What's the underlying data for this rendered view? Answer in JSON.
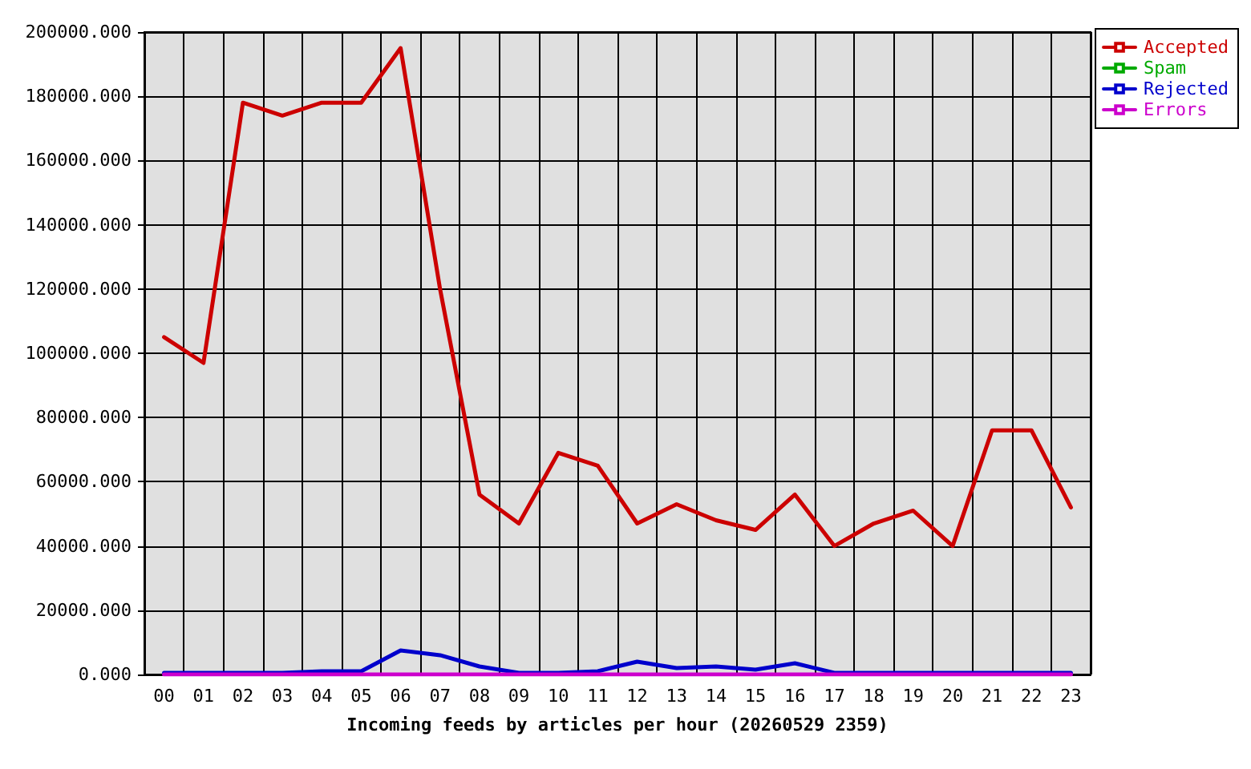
{
  "chart_data": {
    "type": "line",
    "xlabel": "Incoming feeds by articles per hour (20260529 2359)",
    "categories": [
      "00",
      "01",
      "02",
      "03",
      "04",
      "05",
      "06",
      "07",
      "08",
      "09",
      "10",
      "11",
      "12",
      "13",
      "14",
      "15",
      "16",
      "17",
      "18",
      "19",
      "20",
      "21",
      "22",
      "23"
    ],
    "series": [
      {
        "name": "Accepted",
        "color": "#cc0000",
        "values": [
          105000,
          97000,
          178000,
          174000,
          178000,
          178000,
          195000,
          120000,
          56000,
          47000,
          69000,
          65000,
          47000,
          53000,
          48000,
          45000,
          56000,
          40000,
          47000,
          51000,
          40000,
          76000,
          76000,
          52000
        ]
      },
      {
        "name": "Spam",
        "color": "#00aa00",
        "values": [
          null,
          null,
          null,
          null,
          null,
          null,
          null,
          null,
          null,
          null,
          null,
          null,
          null,
          null,
          null,
          null,
          null,
          null,
          null,
          null,
          null,
          null,
          null,
          null
        ]
      },
      {
        "name": "Rejected",
        "color": "#0000cc",
        "values": [
          500,
          500,
          500,
          500,
          1000,
          1000,
          7500,
          6000,
          2500,
          500,
          500,
          1000,
          4000,
          2000,
          2500,
          1500,
          3500,
          500,
          500,
          500,
          500,
          500,
          500,
          500
        ]
      },
      {
        "name": "Errors",
        "color": "#cc00cc",
        "values": [
          0,
          0,
          0,
          0,
          0,
          0,
          0,
          0,
          0,
          0,
          0,
          0,
          0,
          0,
          0,
          0,
          0,
          0,
          0,
          0,
          0,
          0,
          0,
          0
        ]
      }
    ],
    "ylim": [
      0,
      200000
    ],
    "yticks": [
      {
        "value": 0,
        "label": "0.000"
      },
      {
        "value": 20000,
        "label": "20000.000"
      },
      {
        "value": 40000,
        "label": "40000.000"
      },
      {
        "value": 60000,
        "label": "60000.000"
      },
      {
        "value": 80000,
        "label": "80000.000"
      },
      {
        "value": 100000,
        "label": "100000.000"
      },
      {
        "value": 120000,
        "label": "120000.000"
      },
      {
        "value": 140000,
        "label": "140000.000"
      },
      {
        "value": 160000,
        "label": "160000.000"
      },
      {
        "value": 180000,
        "label": "180000.000"
      },
      {
        "value": 200000,
        "label": "200000.000"
      }
    ],
    "grid": true,
    "legend": "top right",
    "marker": "none",
    "line_style": "solid"
  }
}
